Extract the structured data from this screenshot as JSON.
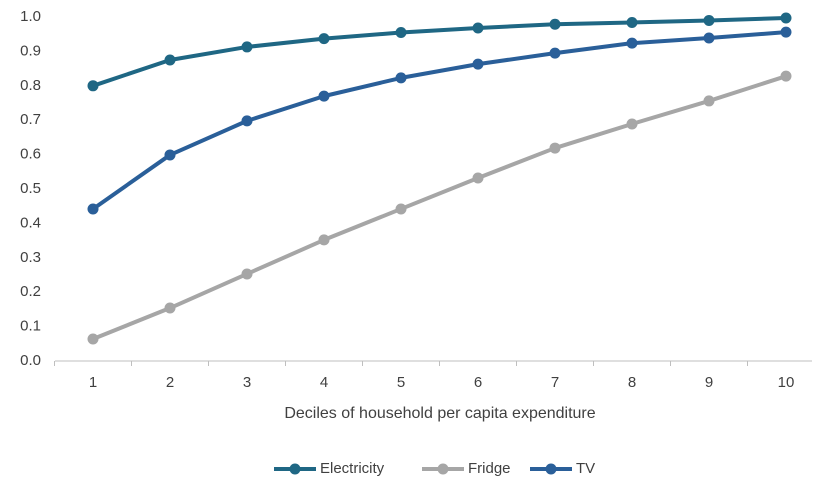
{
  "chart_data": {
    "type": "line",
    "x_label": "Deciles of household per capita expenditure",
    "categories": [
      "1",
      "2",
      "3",
      "4",
      "5",
      "6",
      "7",
      "8",
      "9",
      "10"
    ],
    "series": [
      {
        "name": "Electricity",
        "color": "#1f6784",
        "values": [
          0.8,
          0.875,
          0.913,
          0.937,
          0.955,
          0.968,
          0.979,
          0.984,
          0.99,
          0.997
        ]
      },
      {
        "name": "Fridge",
        "color": "#a6a6a6",
        "values": [
          0.064,
          0.154,
          0.253,
          0.352,
          0.442,
          0.532,
          0.619,
          0.689,
          0.756,
          0.828
        ]
      },
      {
        "name": "TV",
        "color": "#2a5f99",
        "values": [
          0.442,
          0.599,
          0.698,
          0.77,
          0.823,
          0.863,
          0.895,
          0.924,
          0.939,
          0.956
        ]
      }
    ],
    "ylim": [
      0,
      1
    ],
    "yticks": [
      {
        "value": 0,
        "label": "0.0"
      },
      0.1,
      0.2,
      0.3,
      0.4,
      0.5,
      0.6,
      0.7,
      0.8,
      0.9,
      {
        "value": 1,
        "label": "1.0"
      }
    ],
    "grid": false,
    "legend": "bottom"
  }
}
